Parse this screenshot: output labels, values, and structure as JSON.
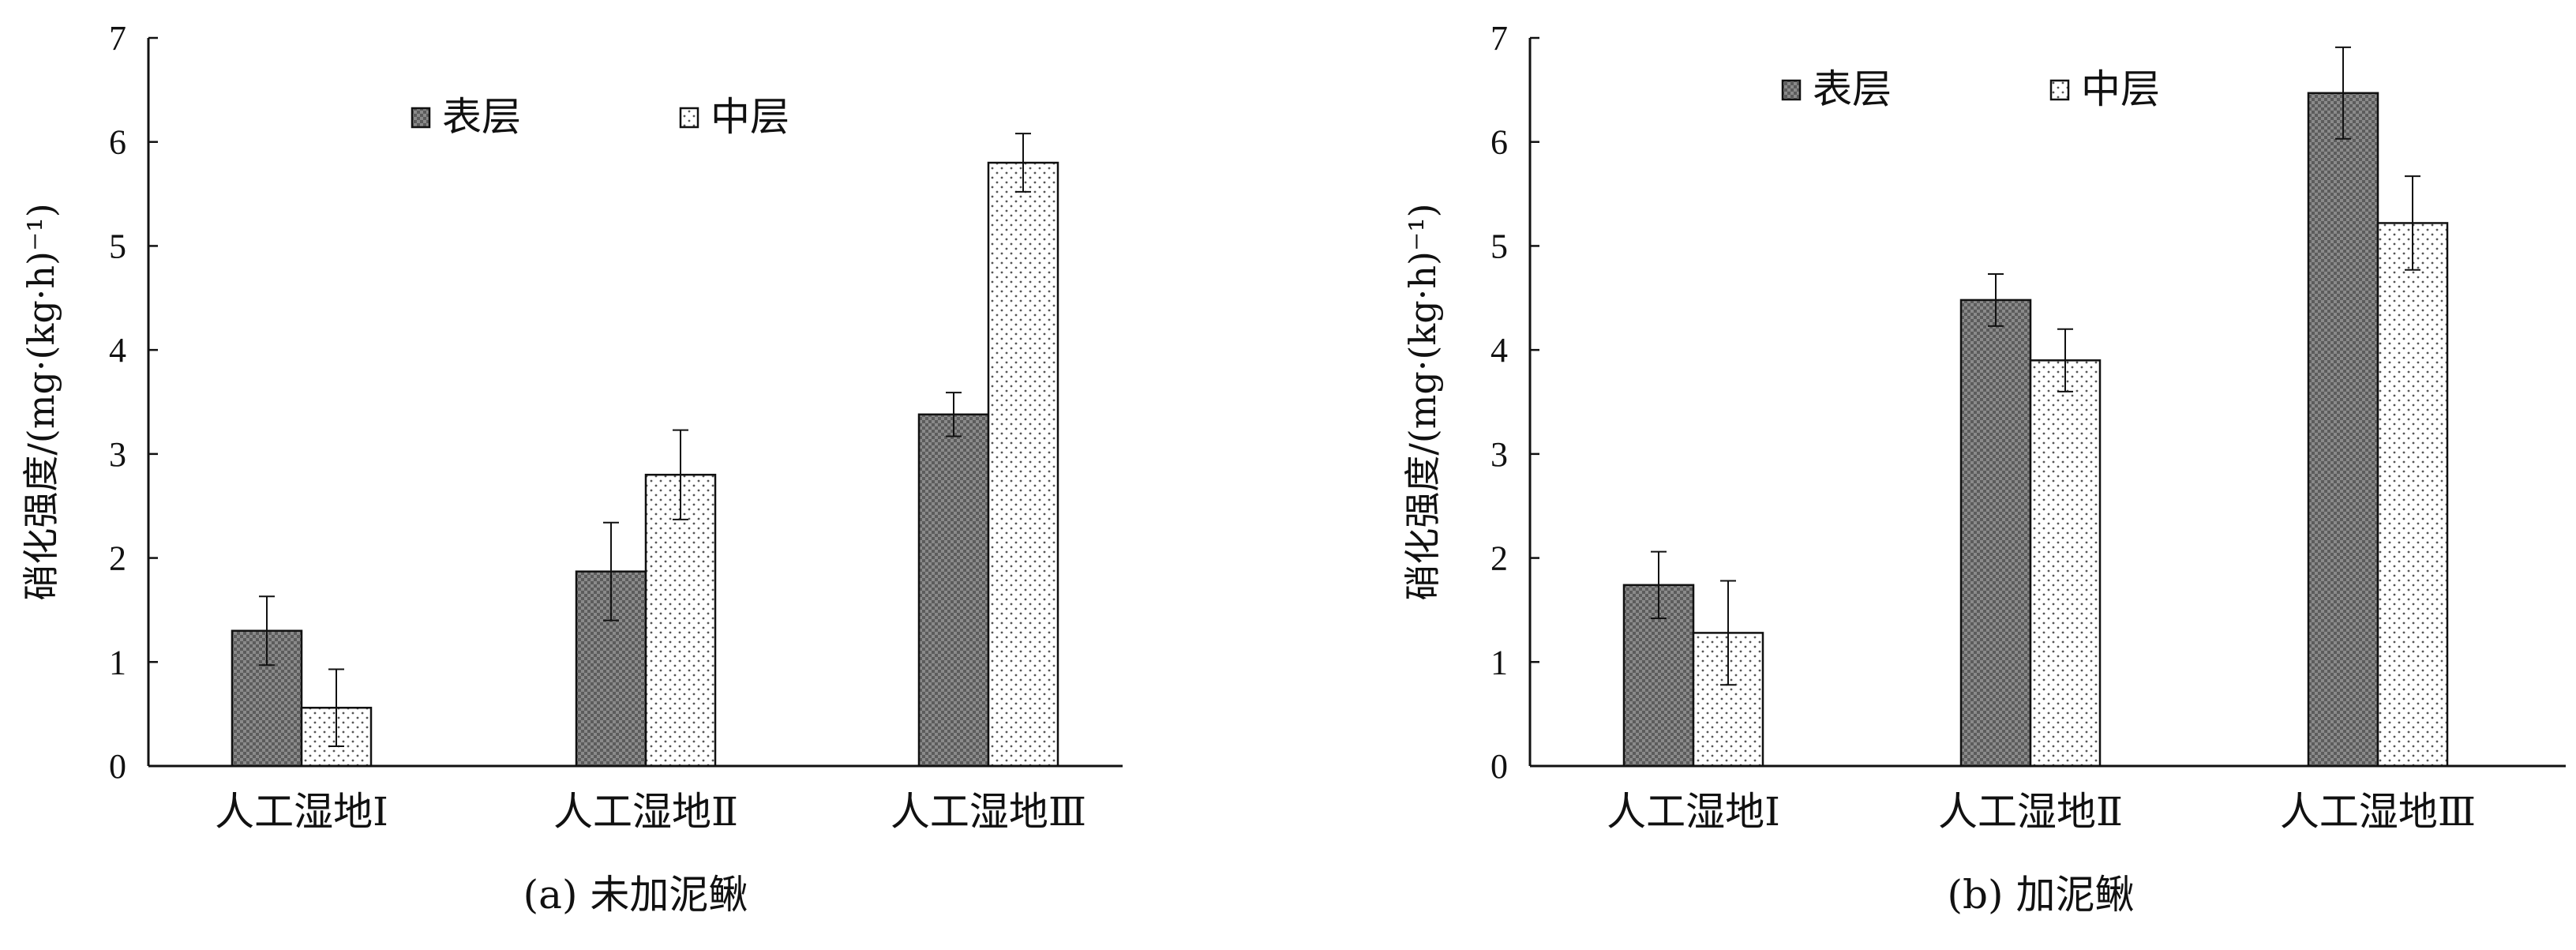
{
  "chart_data": [
    {
      "type": "bar",
      "caption": "(a) 未加泥鳅",
      "ylabel": "硝化强度/(mg·(kg·h)⁻¹)",
      "ylim": [
        0,
        7
      ],
      "yticks": [
        0,
        1,
        2,
        3,
        4,
        5,
        6,
        7
      ],
      "categories": [
        "人工湿地Ⅰ",
        "人工湿地Ⅱ",
        "人工湿地Ⅲ"
      ],
      "legend_position": "top-center",
      "series": [
        {
          "name": "表层",
          "values": [
            1.3,
            1.87,
            3.38
          ],
          "errors": [
            0.33,
            0.47,
            0.21
          ]
        },
        {
          "name": "中层",
          "values": [
            0.56,
            2.8,
            5.8
          ],
          "errors": [
            0.37,
            0.43,
            0.28
          ]
        }
      ]
    },
    {
      "type": "bar",
      "caption": "(b) 加泥鳅",
      "ylabel": "硝化强度/(mg·(kg·h)⁻¹)",
      "ylim": [
        0,
        7
      ],
      "yticks": [
        0,
        1,
        2,
        3,
        4,
        5,
        6,
        7
      ],
      "categories": [
        "人工湿地Ⅰ",
        "人工湿地Ⅱ",
        "人工湿地Ⅲ"
      ],
      "legend_position": "top-center",
      "series": [
        {
          "name": "表层",
          "values": [
            1.74,
            4.48,
            6.47
          ],
          "errors": [
            0.32,
            0.25,
            0.44
          ]
        },
        {
          "name": "中层",
          "values": [
            1.28,
            3.9,
            5.22
          ],
          "errors": [
            0.5,
            0.3,
            0.45
          ]
        }
      ]
    }
  ],
  "colors": {
    "surface_fill": "#6e6e6e",
    "middle_fill": "#f4f4f4",
    "stroke": "#111111"
  }
}
